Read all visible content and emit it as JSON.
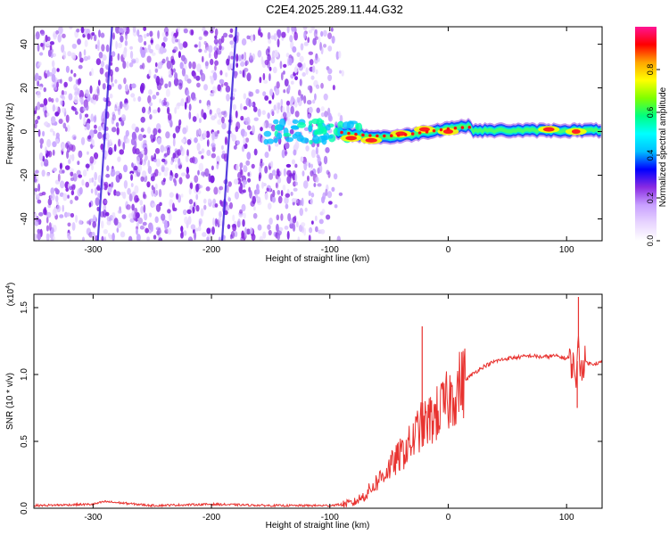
{
  "title": "C2E4.2025.289.11.44.G32",
  "chart_data": [
    {
      "type": "heatmap",
      "xlabel": "Height of straight line (km)",
      "ylabel": "Frequency (Hz)",
      "xlim": [
        -350,
        130
      ],
      "ylim": [
        -50,
        48
      ],
      "xticks": [
        -300,
        -200,
        -100,
        0,
        100
      ],
      "xtick_labels": [
        "-300",
        "-200",
        "-100",
        "0",
        "100"
      ],
      "yticks": [
        -40,
        -20,
        0,
        20,
        40
      ],
      "ytick_labels": [
        "-40",
        "-20",
        "0",
        "20",
        "40"
      ],
      "colorbar": {
        "label": "Normalized spectral amplitude",
        "range": [
          0.0,
          1.0
        ],
        "ticks": [
          0.0,
          0.2,
          0.4,
          0.6,
          0.8
        ],
        "tick_labels": [
          "0.0",
          "0.2",
          "0.4",
          "0.6",
          "0.8"
        ],
        "colors": [
          "#ffffff",
          "#e8d5ff",
          "#c8a0ff",
          "#8a2be2",
          "#0000ff",
          "#00bfff",
          "#00ffff",
          "#00ff80",
          "#80ff00",
          "#ffff00",
          "#ffa500",
          "#ff0000",
          "#ff1493"
        ]
      },
      "features": {
        "noise_region_x": [
          -350,
          -95
        ],
        "carrier_band_center_hz": 0,
        "carrier_start_x": -95,
        "streak_x": [
          -290,
          -185
        ],
        "hotspots": [
          {
            "x": -82,
            "y": -3,
            "level": 0.9
          },
          {
            "x": -65,
            "y": -4,
            "level": 0.95
          },
          {
            "x": -40,
            "y": -1,
            "level": 0.85
          },
          {
            "x": -20,
            "y": 1,
            "level": 0.85
          },
          {
            "x": 0,
            "y": 0,
            "level": 0.8
          },
          {
            "x": 85,
            "y": 1,
            "level": 0.9
          },
          {
            "x": 108,
            "y": 0,
            "level": 0.7
          }
        ]
      }
    },
    {
      "type": "line",
      "xlabel": "Height of straight line (km)",
      "ylabel": "SNR (10 * v/v)",
      "y_multiplier": "(x10",
      "y_multiplier_exp": "4",
      "y_multiplier_close": ")",
      "xlim": [
        -350,
        130
      ],
      "ylim": [
        0.0,
        1.6
      ],
      "xticks": [
        -300,
        -200,
        -100,
        0,
        100
      ],
      "xtick_labels": [
        "-300",
        "-200",
        "-100",
        "0",
        "100"
      ],
      "yticks": [
        0.0,
        0.5,
        1.0,
        1.5
      ],
      "ytick_labels": [
        "0.0",
        "0.5",
        "1.0",
        "1.5"
      ],
      "series": [
        {
          "name": "SNR",
          "color": "#e8322f",
          "x": [
            -350,
            -300,
            -290,
            -250,
            -200,
            -150,
            -100,
            -80,
            -70,
            -60,
            -50,
            -40,
            -30,
            -25,
            -20,
            -10,
            0,
            10,
            20,
            30,
            40,
            50,
            60,
            70,
            80,
            90,
            100,
            105,
            108,
            110,
            112,
            115,
            120,
            130
          ],
          "y": [
            0.02,
            0.03,
            0.05,
            0.02,
            0.03,
            0.02,
            0.02,
            0.04,
            0.1,
            0.2,
            0.3,
            0.4,
            0.5,
            0.6,
            0.62,
            0.7,
            0.8,
            0.92,
            1.0,
            1.06,
            1.1,
            1.12,
            1.13,
            1.14,
            1.13,
            1.14,
            1.12,
            1.08,
            1.0,
            1.2,
            1.05,
            1.1,
            1.08,
            1.09
          ],
          "spikes": [
            {
              "x": -22,
              "y": 1.36
            },
            {
              "x": 110,
              "y": 1.58
            },
            {
              "x": 109,
              "y": 0.75
            }
          ]
        }
      ]
    }
  ]
}
